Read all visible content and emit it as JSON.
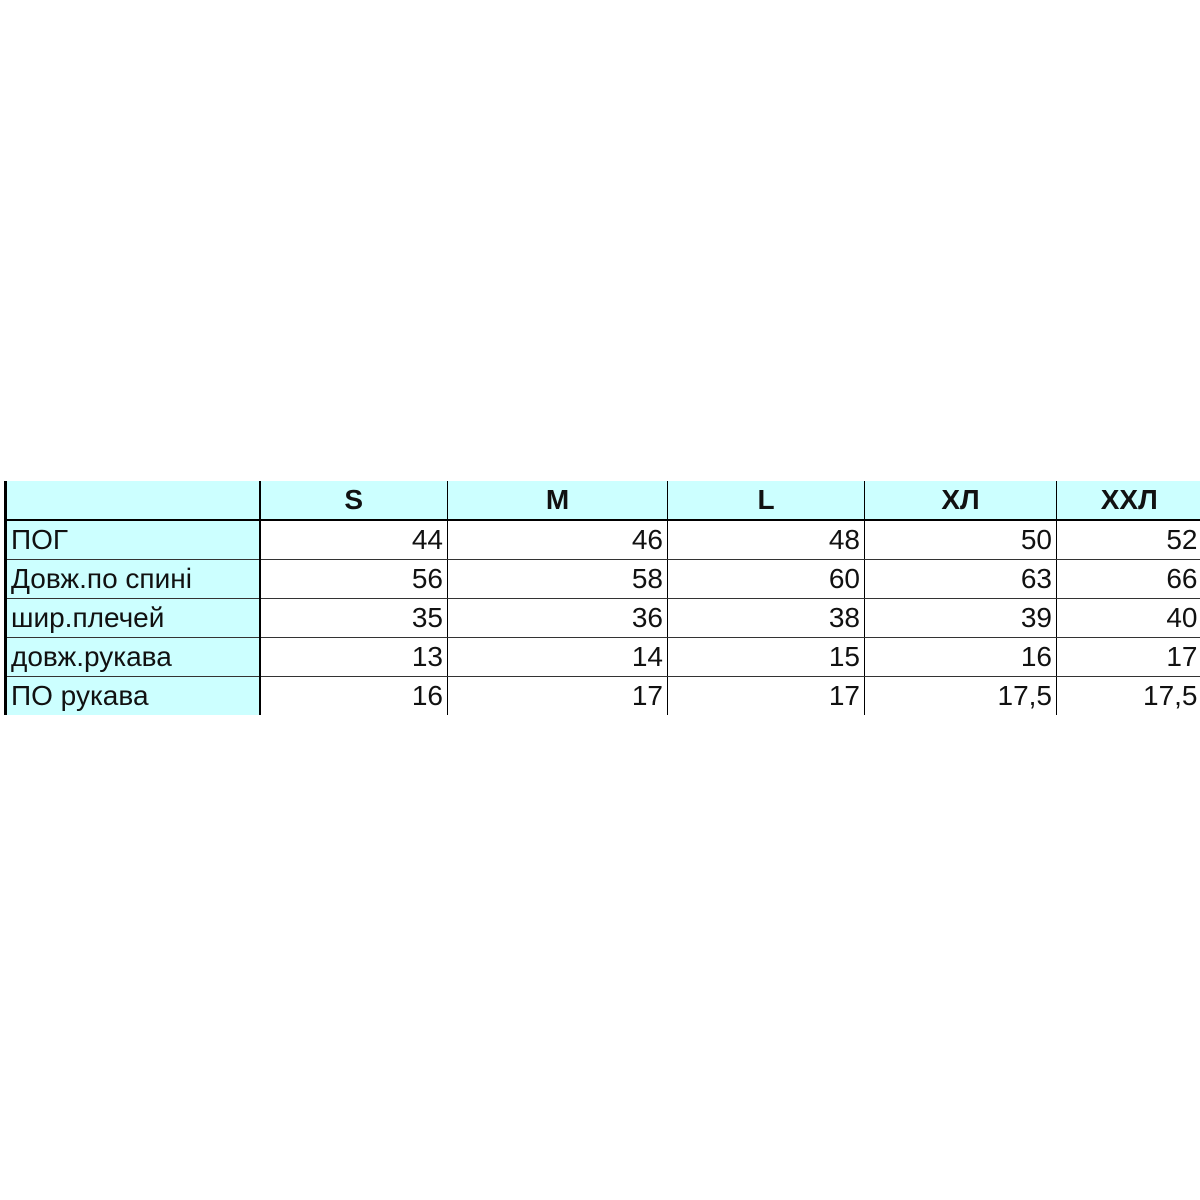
{
  "table": {
    "columns": [
      "",
      "S",
      "M",
      "L",
      "ХЛ",
      "ХХЛ"
    ],
    "rows": [
      {
        "label": "ПОГ",
        "values": [
          "44",
          "46",
          "48",
          "50",
          "52"
        ]
      },
      {
        "label": "Довж.по спині",
        "values": [
          "56",
          "58",
          "60",
          "63",
          "66"
        ]
      },
      {
        "label": "шир.плечей",
        "values": [
          "35",
          "36",
          "38",
          "39",
          "40"
        ]
      },
      {
        "label": "довж.рукава",
        "values": [
          "13",
          "14",
          "15",
          "16",
          "17"
        ]
      },
      {
        "label": "ПО рукава",
        "values": [
          "16",
          "17",
          "17",
          "17,5",
          "17,5"
        ]
      }
    ]
  },
  "colors": {
    "header_fill": "#ccffff",
    "grid": "#000000"
  }
}
